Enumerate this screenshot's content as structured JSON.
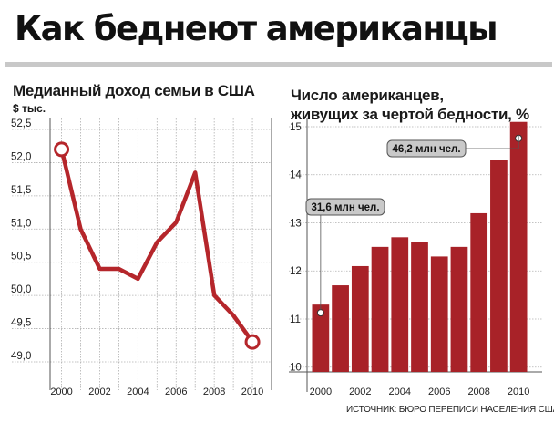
{
  "header": {
    "title": "Как беднеют американцы"
  },
  "source_note": "ИСТОЧНИК: БЮРО ПЕРЕПИСИ НАСЕЛЕНИЯ США",
  "colors": {
    "series": "#b5262b",
    "bar": "#a82228",
    "grid": "#b0b0b0",
    "callout_bg": "#c9c9c9"
  },
  "chart_data": [
    {
      "type": "line",
      "title": "Медианный доход семьи в США",
      "unit": "$ тыс.",
      "x": [
        2000,
        2001,
        2002,
        2003,
        2004,
        2005,
        2006,
        2007,
        2008,
        2009,
        2010
      ],
      "xticks": [
        "2000",
        "2002",
        "2004",
        "2006",
        "2008",
        "2010"
      ],
      "yticks": [
        "49,0",
        "49,5",
        "50,0",
        "50,5",
        "51,0",
        "51,5",
        "52,0",
        "52,5"
      ],
      "ylim": [
        49.0,
        52.5
      ],
      "series": [
        {
          "values": [
            52.2,
            51.0,
            50.4,
            50.4,
            50.25,
            50.8,
            51.1,
            51.85,
            50.0,
            49.7,
            49.3
          ]
        }
      ],
      "markers": [
        2000,
        2010
      ]
    },
    {
      "type": "bar",
      "title": "Число американцев,",
      "title_line2": "живущих за чертой бедности, %",
      "x": [
        2000,
        2001,
        2002,
        2003,
        2004,
        2005,
        2006,
        2007,
        2008,
        2009,
        2010
      ],
      "xticks": [
        "2000",
        "2002",
        "2004",
        "2006",
        "2008",
        "2010"
      ],
      "yticks": [
        "10",
        "11",
        "12",
        "13",
        "14",
        "15"
      ],
      "ylim": [
        9.9,
        15.0
      ],
      "values": [
        11.3,
        11.7,
        12.1,
        12.5,
        12.7,
        12.6,
        12.3,
        12.5,
        13.2,
        14.3,
        15.1
      ],
      "annotations": [
        {
          "label": "31,6 млн чел.",
          "year": 2000
        },
        {
          "label": "46,2 млн чел.",
          "year": 2010
        }
      ]
    }
  ]
}
